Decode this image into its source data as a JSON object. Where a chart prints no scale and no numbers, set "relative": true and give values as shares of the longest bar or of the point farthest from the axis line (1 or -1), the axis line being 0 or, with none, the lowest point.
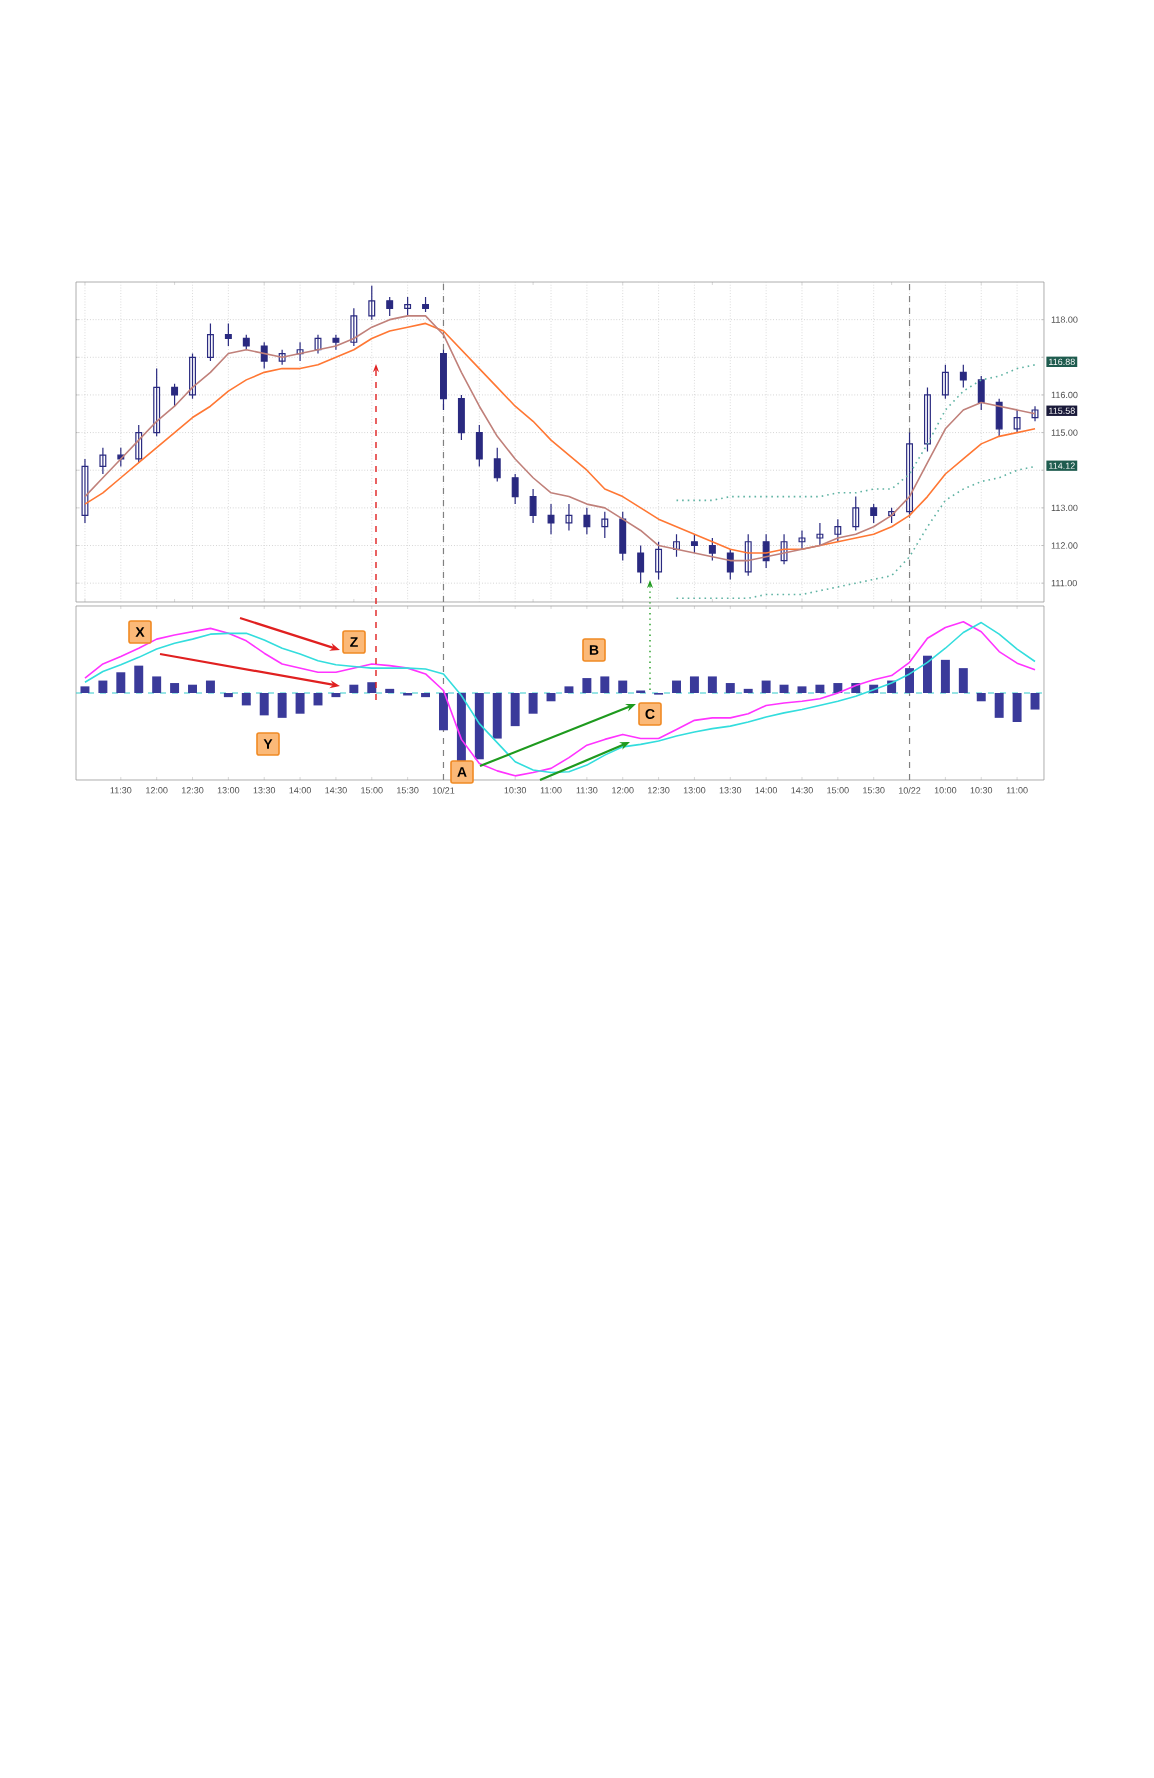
{
  "chart_data": [
    {
      "type": "candlestick",
      "color": "#2a2a80",
      "grid": true,
      "tick_labels": "y",
      "categories": [
        null,
        null,
        null,
        null,
        null,
        null,
        null,
        null,
        null,
        null,
        null,
        null,
        null,
        null,
        null,
        null,
        null,
        null,
        null,
        null,
        null,
        null,
        null,
        null,
        null,
        null,
        null,
        null,
        null,
        null,
        null,
        null,
        null,
        null,
        null,
        null,
        null,
        null,
        null,
        null,
        null,
        null,
        null,
        null,
        null,
        null,
        null,
        null,
        null,
        null,
        null,
        null,
        null,
        null
      ],
      "ohlc": [
        [
          112.8,
          114.3,
          112.6,
          114.1
        ],
        [
          114.1,
          114.6,
          113.9,
          114.4
        ],
        [
          114.4,
          114.6,
          114.1,
          114.3
        ],
        [
          114.3,
          115.2,
          114.2,
          115.0
        ],
        [
          115.0,
          116.7,
          114.9,
          116.2
        ],
        [
          116.2,
          116.3,
          115.7,
          116.0
        ],
        [
          116.0,
          117.1,
          115.9,
          117.0
        ],
        [
          117.0,
          117.9,
          116.9,
          117.6
        ],
        [
          117.6,
          117.9,
          117.3,
          117.5
        ],
        [
          117.5,
          117.6,
          117.2,
          117.3
        ],
        [
          117.3,
          117.4,
          116.7,
          116.9
        ],
        [
          116.9,
          117.2,
          116.8,
          117.1
        ],
        [
          117.1,
          117.4,
          116.9,
          117.2
        ],
        [
          117.2,
          117.6,
          117.1,
          117.5
        ],
        [
          117.5,
          117.6,
          117.2,
          117.4
        ],
        [
          117.4,
          118.3,
          117.3,
          118.1
        ],
        [
          118.1,
          118.9,
          118.0,
          118.5
        ],
        [
          118.5,
          118.6,
          118.1,
          118.3
        ],
        [
          118.3,
          118.6,
          118.1,
          118.4
        ],
        [
          118.4,
          118.6,
          118.2,
          118.3
        ],
        [
          117.1,
          117.2,
          115.6,
          115.9
        ],
        [
          115.9,
          116.0,
          114.8,
          115.0
        ],
        [
          115.0,
          115.2,
          114.1,
          114.3
        ],
        [
          114.3,
          114.6,
          113.7,
          113.8
        ],
        [
          113.8,
          113.9,
          113.1,
          113.3
        ],
        [
          113.3,
          113.5,
          112.6,
          112.8
        ],
        [
          112.8,
          113.1,
          112.3,
          112.6
        ],
        [
          112.6,
          113.1,
          112.4,
          112.8
        ],
        [
          112.8,
          113.0,
          112.3,
          112.5
        ],
        [
          112.5,
          112.9,
          112.2,
          112.7
        ],
        [
          112.7,
          112.9,
          111.6,
          111.8
        ],
        [
          111.8,
          112.0,
          111.0,
          111.3
        ],
        [
          111.3,
          112.1,
          111.1,
          111.9
        ],
        [
          111.9,
          112.3,
          111.7,
          112.1
        ],
        [
          112.1,
          112.3,
          111.8,
          112.0
        ],
        [
          112.0,
          112.2,
          111.6,
          111.8
        ],
        [
          111.8,
          111.9,
          111.1,
          111.3
        ],
        [
          111.3,
          112.3,
          111.2,
          112.1
        ],
        [
          112.1,
          112.3,
          111.4,
          111.6
        ],
        [
          111.6,
          112.3,
          111.5,
          112.1
        ],
        [
          112.1,
          112.4,
          111.9,
          112.2
        ],
        [
          112.2,
          112.6,
          112.0,
          112.3
        ],
        [
          112.3,
          112.7,
          112.1,
          112.5
        ],
        [
          112.5,
          113.3,
          112.4,
          113.0
        ],
        [
          113.0,
          113.1,
          112.6,
          112.8
        ],
        [
          112.8,
          113.0,
          112.6,
          112.9
        ],
        [
          112.9,
          115.0,
          112.8,
          114.7
        ],
        [
          114.7,
          116.2,
          114.5,
          116.0
        ],
        [
          116.0,
          116.8,
          115.9,
          116.6
        ],
        [
          116.6,
          116.8,
          116.2,
          116.4
        ],
        [
          116.4,
          116.5,
          115.6,
          115.8
        ],
        [
          115.8,
          115.9,
          114.9,
          115.1
        ],
        [
          115.1,
          115.6,
          115.0,
          115.4
        ],
        [
          115.4,
          115.7,
          115.3,
          115.6
        ]
      ],
      "series": [
        {
          "type": "line",
          "color": "#ff7733",
          "values": [
            113.1,
            113.4,
            113.8,
            114.2,
            114.6,
            115.0,
            115.4,
            115.7,
            116.1,
            116.4,
            116.6,
            116.7,
            116.7,
            116.8,
            117.0,
            117.2,
            117.5,
            117.7,
            117.8,
            117.9,
            117.7,
            117.2,
            116.7,
            116.2,
            115.7,
            115.3,
            114.8,
            114.4,
            114.0,
            113.5,
            113.3,
            113.0,
            112.7,
            112.5,
            112.3,
            112.1,
            111.9,
            111.8,
            111.8,
            111.9,
            111.9,
            112.0,
            112.1,
            112.2,
            112.3,
            112.5,
            112.8,
            113.3,
            113.9,
            114.3,
            114.7,
            114.9,
            115.0,
            115.1
          ]
        },
        {
          "type": "line",
          "color": "#c0807a",
          "values": [
            113.3,
            113.8,
            114.3,
            114.8,
            115.3,
            115.7,
            116.2,
            116.6,
            117.1,
            117.2,
            117.1,
            117.0,
            117.1,
            117.2,
            117.3,
            117.5,
            117.8,
            118.0,
            118.1,
            118.1,
            117.6,
            116.6,
            115.7,
            114.9,
            114.3,
            113.8,
            113.4,
            113.3,
            113.1,
            113.0,
            112.7,
            112.4,
            112.0,
            111.9,
            111.8,
            111.7,
            111.6,
            111.6,
            111.7,
            111.8,
            111.9,
            112.0,
            112.2,
            112.3,
            112.5,
            112.8,
            113.3,
            114.2,
            115.1,
            115.6,
            115.8,
            115.7,
            115.6,
            115.5
          ]
        },
        {
          "type": "line",
          "color": "#5fb3a3",
          "line_style": "dotted",
          "values": [
            null,
            null,
            null,
            null,
            null,
            null,
            null,
            null,
            null,
            null,
            null,
            null,
            null,
            null,
            null,
            null,
            null,
            null,
            null,
            null,
            null,
            null,
            null,
            null,
            null,
            null,
            null,
            null,
            null,
            null,
            null,
            null,
            null,
            113.2,
            113.2,
            113.2,
            113.3,
            113.3,
            113.3,
            113.3,
            113.3,
            113.3,
            113.4,
            113.4,
            113.5,
            113.5,
            113.9,
            114.7,
            115.6,
            116.1,
            116.4,
            116.5,
            116.7,
            116.8
          ]
        },
        {
          "type": "line",
          "color": "#5fb3a3",
          "line_style": "dotted",
          "values": [
            null,
            null,
            null,
            null,
            null,
            null,
            null,
            null,
            null,
            null,
            null,
            null,
            null,
            null,
            null,
            null,
            null,
            null,
            null,
            null,
            null,
            null,
            null,
            null,
            null,
            null,
            null,
            null,
            null,
            null,
            null,
            null,
            null,
            110.6,
            110.6,
            110.6,
            110.6,
            110.6,
            110.7,
            110.7,
            110.7,
            110.8,
            110.9,
            111.0,
            111.1,
            111.2,
            111.7,
            112.5,
            113.2,
            113.5,
            113.7,
            113.8,
            114.0,
            114.1
          ]
        }
      ],
      "ylim": [
        110.5,
        119.0
      ],
      "yticks": [
        {
          "value": 111,
          "label": "111.00"
        },
        {
          "value": 112,
          "label": "112.00"
        },
        {
          "value": 113,
          "label": "113.00"
        },
        {
          "value": 114,
          "label": null
        },
        {
          "value": 115,
          "label": "115.00"
        },
        {
          "value": 116,
          "label": "116.00"
        },
        {
          "value": 117,
          "label": null
        },
        {
          "value": 118,
          "label": "118.00"
        }
      ],
      "annotations": [
        {
          "text": "116.88",
          "y": 116.88
        },
        {
          "text": "115.58",
          "y": 115.58
        },
        {
          "text": "114.12",
          "y": 114.12
        }
      ]
    },
    {
      "type": "bar",
      "relative": true,
      "tick_labels": "x",
      "categories": [
        null,
        null,
        "11:30",
        null,
        "12:00",
        null,
        "12:30",
        null,
        "13:00",
        null,
        "13:30",
        null,
        "14:00",
        null,
        "14:30",
        null,
        "15:00",
        null,
        "15:30",
        null,
        "10/21",
        null,
        null,
        null,
        "10:30",
        null,
        "11:00",
        null,
        "11:30",
        null,
        "12:00",
        null,
        "12:30",
        null,
        "13:00",
        null,
        "13:30",
        null,
        "14:00",
        null,
        "14:30",
        null,
        "15:00",
        null,
        "15:30",
        null,
        "10/22",
        null,
        "10:00",
        null,
        "10:30",
        null,
        "11:00",
        null
      ],
      "series": [
        {
          "type": "bar",
          "color": "#3a3a9a",
          "values": [
            0.08,
            0.15,
            0.25,
            0.33,
            0.2,
            0.12,
            0.1,
            0.15,
            -0.05,
            -0.15,
            -0.27,
            -0.3,
            -0.25,
            -0.15,
            -0.05,
            0.1,
            0.13,
            0.05,
            -0.03,
            -0.05,
            -0.45,
            -0.85,
            -0.8,
            -0.55,
            -0.4,
            -0.25,
            -0.1,
            0.08,
            0.18,
            0.2,
            0.15,
            0.03,
            -0.02,
            0.15,
            0.2,
            0.2,
            0.12,
            0.05,
            0.15,
            0.1,
            0.08,
            0.1,
            0.12,
            0.12,
            0.1,
            0.15,
            0.3,
            0.45,
            0.4,
            0.3,
            -0.1,
            -0.3,
            -0.35,
            -0.2
          ]
        },
        {
          "type": "line",
          "color": "#ff33ff",
          "values": [
            0.18,
            0.35,
            0.44,
            0.54,
            0.65,
            0.7,
            0.74,
            0.78,
            0.72,
            0.63,
            0.48,
            0.35,
            0.3,
            0.25,
            0.25,
            0.3,
            0.35,
            0.33,
            0.3,
            0.23,
            0.03,
            -0.56,
            -0.85,
            -0.94,
            -1.0,
            -0.96,
            -0.91,
            -0.78,
            -0.63,
            -0.56,
            -0.5,
            -0.55,
            -0.55,
            -0.44,
            -0.33,
            -0.3,
            -0.3,
            -0.25,
            -0.15,
            -0.12,
            -0.1,
            -0.07,
            0.0,
            0.09,
            0.16,
            0.21,
            0.37,
            0.66,
            0.79,
            0.86,
            0.74,
            0.5,
            0.36,
            0.28
          ]
        },
        {
          "type": "line",
          "color": "#33dddd",
          "values": [
            0.13,
            0.26,
            0.34,
            0.43,
            0.53,
            0.6,
            0.65,
            0.71,
            0.72,
            0.72,
            0.64,
            0.54,
            0.47,
            0.39,
            0.34,
            0.32,
            0.3,
            0.3,
            0.3,
            0.29,
            0.23,
            -0.03,
            -0.37,
            -0.6,
            -0.83,
            -0.93,
            -0.96,
            -0.95,
            -0.87,
            -0.75,
            -0.65,
            -0.62,
            -0.58,
            -0.52,
            -0.47,
            -0.43,
            -0.4,
            -0.35,
            -0.29,
            -0.24,
            -0.2,
            -0.15,
            -0.1,
            -0.04,
            0.04,
            0.12,
            0.23,
            0.37,
            0.54,
            0.73,
            0.85,
            0.71,
            0.53,
            0.38
          ]
        }
      ],
      "ref_lines": [
        {
          "axis": "x",
          "value": "10/21",
          "color": "#808080",
          "line_style": "dashed"
        },
        {
          "axis": "x",
          "value": "10/22",
          "color": "#808080",
          "line_style": "dashed"
        },
        {
          "axis": "y",
          "value": 0,
          "color": "#33cccc",
          "line_style": "dashed"
        }
      ],
      "annotations": [
        "X",
        "Y",
        "Z",
        "A",
        "B",
        "C"
      ]
    }
  ]
}
